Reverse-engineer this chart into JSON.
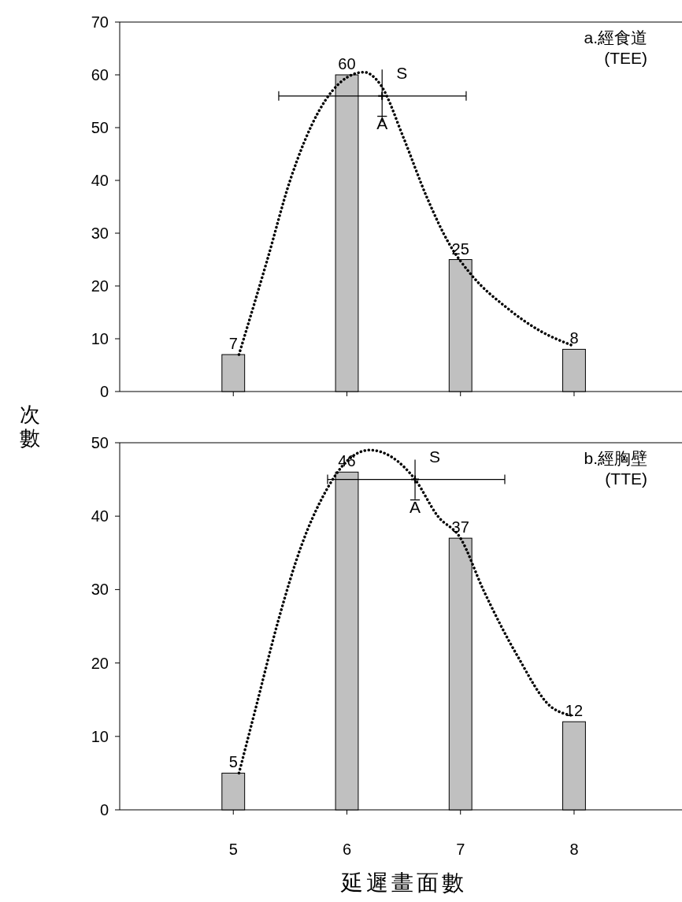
{
  "chart_data": [
    {
      "type": "bar",
      "xlim": [
        4,
        8.95
      ],
      "xticks": [
        5,
        6,
        7,
        8
      ],
      "ylim": [
        0,
        70
      ],
      "yticks": [
        0,
        10,
        20,
        30,
        40,
        50,
        60,
        70
      ],
      "tick_labels": "y",
      "ylabel": "次數",
      "annotations": [
        "a.經食道\n(TEE)",
        "S",
        "A̅"
      ],
      "series": [
        {
          "x": [
            5,
            6,
            7,
            8
          ],
          "values": [
            7,
            60,
            25,
            8
          ],
          "value_labels": [
            "7",
            "60",
            "25",
            "8"
          ],
          "color": "#c0c0c0"
        },
        {
          "type": "line",
          "x": [
            5.05,
            5.3,
            5.5,
            5.75,
            6.0,
            6.15,
            6.3,
            6.5,
            6.7,
            6.9,
            7.1,
            7.4,
            7.7,
            8.0
          ],
          "values": [
            7,
            25,
            40,
            53,
            59.5,
            60.5,
            58,
            48,
            37,
            28,
            22,
            16,
            11.5,
            8.6
          ],
          "color": "#000000",
          "line_style": "dotted",
          "marker": "none"
        },
        {
          "type": "scatter",
          "x": [
            6.31
          ],
          "values": [
            56
          ],
          "errors": [
            5
          ],
          "xerrors": [
            [
              5.4,
              7.05
            ]
          ],
          "color": "#000000",
          "marker": "cross"
        }
      ]
    },
    {
      "type": "bar",
      "xlim": [
        4,
        8.95
      ],
      "xticks": [
        5,
        6,
        7,
        8
      ],
      "ylim": [
        0,
        50
      ],
      "yticks": [
        0,
        10,
        20,
        30,
        40,
        50
      ],
      "xlabel": "延遲畫面數",
      "annotations": [
        "b.經胸壁\n(TTE)",
        "S",
        "A̅"
      ],
      "series": [
        {
          "x": [
            5,
            6,
            7,
            8
          ],
          "values": [
            5,
            46,
            37,
            12
          ],
          "value_labels": [
            "5",
            "46",
            "37",
            "12"
          ],
          "color": "#c0c0c0"
        },
        {
          "type": "line",
          "x": [
            5.05,
            5.2,
            5.4,
            5.6,
            5.8,
            6.0,
            6.2,
            6.4,
            6.6,
            6.8,
            7.0,
            7.2,
            7.5,
            7.8,
            8.0
          ],
          "values": [
            5,
            14,
            26,
            36,
            43,
            47.5,
            49,
            48,
            45,
            40,
            37,
            30,
            21,
            14,
            12.8
          ],
          "color": "#000000",
          "line_style": "dotted",
          "marker": "none"
        },
        {
          "type": "scatter",
          "x": [
            6.6
          ],
          "values": [
            45
          ],
          "errors": [
            2.7
          ],
          "xerrors": [
            [
              5.83,
              7.39
            ]
          ],
          "color": "#000000",
          "marker": "cross"
        }
      ]
    }
  ]
}
